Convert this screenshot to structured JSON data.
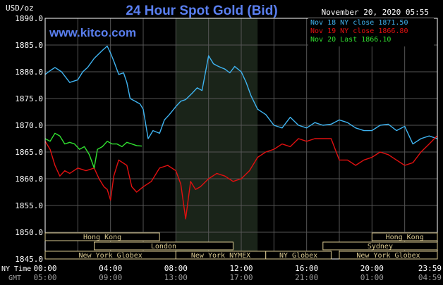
{
  "chart_data": {
    "type": "line",
    "title": "24 Hour Spot Gold (Bid)",
    "timestamp": "November 20, 2020 05:55",
    "watermark": "www.kitco.com",
    "ylabel": "USD/oz",
    "ylim": [
      1845.0,
      1890.0
    ],
    "yticks": [
      "1890.0",
      "1885.0",
      "1880.0",
      "1875.0",
      "1870.0",
      "1865.0",
      "1860.0",
      "1855.0",
      "1850.0",
      "1845.0"
    ],
    "ny_time_label": "NY Time",
    "gmt_label": "GMT",
    "ny_time_ticks": [
      "00:00",
      "04:00",
      "08:00",
      "12:00",
      "16:00",
      "20:00",
      "23:59"
    ],
    "gmt_ticks": [
      "05:00",
      "09:00",
      "13:00",
      "17:00",
      "21:00",
      "01:00",
      "04:59"
    ],
    "legend_position": "top-right",
    "legend": [
      {
        "label": "Nov 18 NY close 1871.50",
        "color": "#3fb3f0"
      },
      {
        "label": "Nov 19 NY close 1866.80",
        "color": "#e01010"
      },
      {
        "label": "Nov 20 Last 1866.10",
        "color": "#30e030"
      }
    ],
    "x_hours": [
      0,
      24
    ],
    "shaded_region_hours": [
      8.0,
      13.0
    ],
    "series": [
      {
        "name": "Nov 18",
        "color": "#3fb3f0",
        "x": [
          0,
          0.3,
          0.6,
          1.0,
          1.5,
          2.0,
          2.3,
          2.6,
          3.0,
          3.5,
          3.8,
          4.0,
          4.2,
          4.5,
          4.8,
          5.0,
          5.2,
          5.5,
          5.8,
          6.0,
          6.3,
          6.6,
          7.0,
          7.3,
          7.6,
          8.0,
          8.3,
          8.6,
          9.0,
          9.3,
          9.6,
          10.0,
          10.3,
          10.6,
          11.0,
          11.3,
          11.6,
          12.0,
          12.3,
          12.6,
          13.0,
          13.5,
          14.0,
          14.5,
          15.0,
          15.5,
          16.0,
          16.5,
          17.0,
          17.5,
          18.0,
          18.5,
          19.0,
          19.5,
          20.0,
          20.5,
          21.0,
          21.5,
          22.0,
          22.5,
          23.0,
          23.5,
          23.98
        ],
        "y": [
          1879.5,
          1880.2,
          1880.8,
          1880.0,
          1878.0,
          1878.5,
          1880.0,
          1880.8,
          1882.5,
          1884.0,
          1884.8,
          1883.5,
          1882.0,
          1879.5,
          1879.8,
          1878.0,
          1875.0,
          1874.5,
          1874.0,
          1873.0,
          1867.5,
          1869.0,
          1868.5,
          1871.0,
          1872.0,
          1873.5,
          1874.5,
          1874.8,
          1876.0,
          1877.0,
          1876.5,
          1883.0,
          1881.5,
          1881.0,
          1880.5,
          1879.8,
          1881.0,
          1880.0,
          1878.0,
          1875.5,
          1873.0,
          1872.0,
          1870.0,
          1869.5,
          1871.5,
          1870.0,
          1869.5,
          1870.5,
          1870.0,
          1870.2,
          1871.0,
          1870.5,
          1869.5,
          1869.0,
          1869.0,
          1870.0,
          1870.2,
          1869.0,
          1869.8,
          1866.5,
          1867.5,
          1868.0,
          1867.5
        ]
      },
      {
        "name": "Nov 19",
        "color": "#e01010",
        "x": [
          0,
          0.3,
          0.6,
          0.9,
          1.2,
          1.5,
          2.0,
          2.5,
          3.0,
          3.3,
          3.6,
          3.8,
          4.0,
          4.2,
          4.5,
          5.0,
          5.3,
          5.6,
          6.0,
          6.5,
          7.0,
          7.5,
          8.0,
          8.3,
          8.6,
          8.9,
          9.2,
          9.5,
          10.0,
          10.5,
          11.0,
          11.5,
          12.0,
          12.5,
          13.0,
          13.5,
          14.0,
          14.5,
          15.0,
          15.5,
          16.0,
          16.5,
          17.0,
          17.5,
          18.0,
          18.5,
          19.0,
          19.5,
          20.0,
          20.5,
          21.0,
          21.5,
          22.0,
          22.5,
          23.0,
          23.5,
          23.98
        ],
        "y": [
          1867.0,
          1865.5,
          1862.5,
          1860.5,
          1861.5,
          1861.0,
          1862.0,
          1861.5,
          1862.0,
          1860.0,
          1858.5,
          1858.0,
          1856.0,
          1860.5,
          1863.5,
          1862.5,
          1858.5,
          1857.5,
          1858.5,
          1859.5,
          1862.0,
          1862.5,
          1861.5,
          1859.0,
          1852.5,
          1859.5,
          1858.0,
          1858.5,
          1860.0,
          1861.0,
          1860.5,
          1859.5,
          1860.0,
          1861.5,
          1864.0,
          1865.0,
          1865.5,
          1866.5,
          1866.0,
          1867.5,
          1867.0,
          1867.5,
          1867.5,
          1867.5,
          1863.5,
          1863.5,
          1862.5,
          1863.5,
          1864.0,
          1865.0,
          1864.5,
          1863.5,
          1862.5,
          1863.0,
          1865.0,
          1866.5,
          1868.0
        ]
      },
      {
        "name": "Nov 20",
        "color": "#30e030",
        "x": [
          0,
          0.3,
          0.6,
          0.9,
          1.2,
          1.5,
          1.8,
          2.1,
          2.4,
          2.7,
          3.0,
          3.2,
          3.5,
          3.8,
          4.1,
          4.4,
          4.7,
          5.0,
          5.3,
          5.6,
          5.92
        ],
        "y": [
          1867.5,
          1867.0,
          1868.5,
          1868.0,
          1866.5,
          1866.8,
          1866.5,
          1865.5,
          1866.0,
          1864.5,
          1862.0,
          1865.5,
          1866.0,
          1867.0,
          1866.5,
          1866.5,
          1866.0,
          1866.8,
          1866.5,
          1866.2,
          1866.1
        ]
      }
    ],
    "session_bars": [
      {
        "label": "Hong Kong",
        "start_hour": 0.0,
        "end_hour": 7.0,
        "row": 0
      },
      {
        "label": "Hong Kong",
        "start_hour": 20.0,
        "end_hour": 24.0,
        "row": 0
      },
      {
        "label": "London",
        "start_hour": 3.0,
        "end_hour": 11.5,
        "row": 1
      },
      {
        "label": "Sydney",
        "start_hour": 17.0,
        "end_hour": 24.0,
        "row": 1
      },
      {
        "label": "New York Globex",
        "start_hour": 0.0,
        "end_hour": 8.0,
        "row": 2
      },
      {
        "label": "New York NYMEX",
        "start_hour": 8.0,
        "end_hour": 13.5,
        "row": 2
      },
      {
        "label": "NY Globex",
        "start_hour": 13.5,
        "end_hour": 17.5,
        "row": 2
      },
      {
        "label": "New York Globex",
        "start_hour": 18.0,
        "end_hour": 24.0,
        "row": 2
      }
    ]
  }
}
